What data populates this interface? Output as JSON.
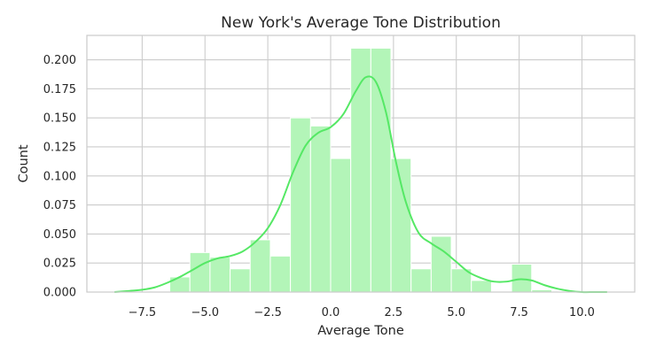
{
  "chart_data": {
    "type": "bar",
    "title": "New York's Average Tone Distribution",
    "xlabel": "Average Tone",
    "ylabel": "Count",
    "xlim": [
      -9.7,
      12.1
    ],
    "ylim": [
      0,
      0.221
    ],
    "xticks": [
      -7.5,
      -5.0,
      -2.5,
      0.0,
      2.5,
      5.0,
      7.5,
      10.0
    ],
    "xtick_labels": [
      "−7.5",
      "−5.0",
      "−2.5",
      "0.0",
      "2.5",
      "5.0",
      "7.5",
      "10.0"
    ],
    "yticks": [
      0.0,
      0.025,
      0.05,
      0.075,
      0.1,
      0.125,
      0.15,
      0.175,
      0.2
    ],
    "ytick_labels": [
      "0.000",
      "0.025",
      "0.050",
      "0.075",
      "0.100",
      "0.125",
      "0.150",
      "0.175",
      "0.200"
    ],
    "grid": true,
    "bar_color": "#b3f5b8",
    "line_color": "#55e865",
    "bins": [
      {
        "x0": -6.4,
        "x1": -5.6,
        "value": 0.013
      },
      {
        "x0": -5.6,
        "x1": -4.8,
        "value": 0.034
      },
      {
        "x0": -4.8,
        "x1": -4.0,
        "value": 0.03
      },
      {
        "x0": -4.0,
        "x1": -3.2,
        "value": 0.02
      },
      {
        "x0": -3.2,
        "x1": -2.4,
        "value": 0.045
      },
      {
        "x0": -2.4,
        "x1": -1.6,
        "value": 0.031
      },
      {
        "x0": -1.6,
        "x1": -0.8,
        "value": 0.15
      },
      {
        "x0": -0.8,
        "x1": 0.0,
        "value": 0.143
      },
      {
        "x0": 0.0,
        "x1": 0.8,
        "value": 0.115
      },
      {
        "x0": 0.8,
        "x1": 1.6,
        "value": 0.21
      },
      {
        "x0": 1.6,
        "x1": 2.4,
        "value": 0.21
      },
      {
        "x0": 2.4,
        "x1": 3.2,
        "value": 0.115
      },
      {
        "x0": 3.2,
        "x1": 4.0,
        "value": 0.02
      },
      {
        "x0": 4.0,
        "x1": 4.8,
        "value": 0.048
      },
      {
        "x0": 4.8,
        "x1": 5.6,
        "value": 0.02
      },
      {
        "x0": 5.6,
        "x1": 6.4,
        "value": 0.01
      },
      {
        "x0": 7.2,
        "x1": 8.0,
        "value": 0.024
      },
      {
        "x0": 8.0,
        "x1": 8.8,
        "value": 0.002
      }
    ],
    "kde": {
      "x": [
        -8.6,
        -8.0,
        -7.5,
        -7.0,
        -6.5,
        -6.0,
        -5.5,
        -5.0,
        -4.5,
        -4.0,
        -3.5,
        -3.0,
        -2.5,
        -2.0,
        -1.5,
        -1.0,
        -0.5,
        0.0,
        0.5,
        1.0,
        1.4,
        1.8,
        2.2,
        2.6,
        3.0,
        3.5,
        4.0,
        4.5,
        5.0,
        5.5,
        6.0,
        6.5,
        7.0,
        7.5,
        8.0,
        8.5,
        9.0,
        9.5,
        10.0,
        10.5,
        11.0
      ],
      "y": [
        0.0,
        0.001,
        0.002,
        0.004,
        0.008,
        0.013,
        0.019,
        0.025,
        0.029,
        0.031,
        0.035,
        0.043,
        0.055,
        0.075,
        0.103,
        0.126,
        0.137,
        0.142,
        0.153,
        0.173,
        0.185,
        0.181,
        0.155,
        0.112,
        0.077,
        0.051,
        0.042,
        0.035,
        0.026,
        0.017,
        0.012,
        0.009,
        0.009,
        0.011,
        0.01,
        0.006,
        0.003,
        0.001,
        0.0,
        0.0,
        0.0
      ]
    }
  }
}
